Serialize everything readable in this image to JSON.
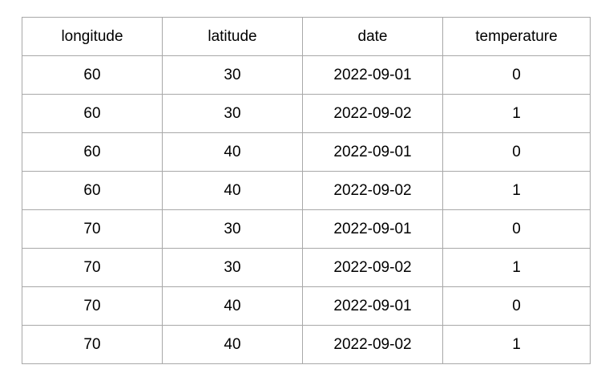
{
  "table": {
    "columns": [
      "longitude",
      "latitude",
      "date",
      "temperature"
    ],
    "rows": [
      [
        "60",
        "30",
        "2022-09-01",
        "0"
      ],
      [
        "60",
        "30",
        "2022-09-02",
        "1"
      ],
      [
        "60",
        "40",
        "2022-09-01",
        "0"
      ],
      [
        "60",
        "40",
        "2022-09-02",
        "1"
      ],
      [
        "70",
        "30",
        "2022-09-01",
        "0"
      ],
      [
        "70",
        "30",
        "2022-09-02",
        "1"
      ],
      [
        "70",
        "40",
        "2022-09-01",
        "0"
      ],
      [
        "70",
        "40",
        "2022-09-02",
        "1"
      ]
    ]
  }
}
